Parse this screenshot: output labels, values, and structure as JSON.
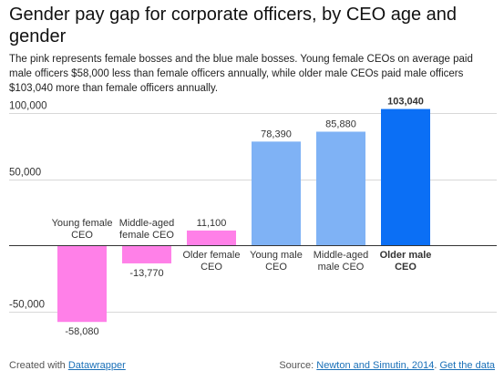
{
  "title": "Gender pay gap for corporate officers, by CEO age and gender",
  "intro": "The pink represents female bosses and the blue male bosses. Young female CEOs on average paid male officers $58,000 less than female officers annually, while older male CEOs paid male officers $103,040 more than female officers annually.",
  "chart_data": {
    "type": "bar",
    "categories": [
      "Young female CEO",
      "Middle-aged female CEO",
      "Older female CEO",
      "Young male CEO",
      "Middle-aged male CEO",
      "Older male CEO"
    ],
    "category_lines": [
      [
        "Young female",
        "CEO"
      ],
      [
        "Middle-aged",
        "female CEO"
      ],
      [
        "Older female",
        "CEO"
      ],
      [
        "Young male",
        "CEO"
      ],
      [
        "Middle-aged",
        "male CEO"
      ],
      [
        "Older male",
        "CEO"
      ]
    ],
    "values": [
      -58080,
      -13770,
      11100,
      78390,
      85880,
      103040
    ],
    "value_labels": [
      "-58,080",
      "-13,770",
      "11,100",
      "78,390",
      "85,880",
      "103,040"
    ],
    "colors": [
      "#ff80e8",
      "#ff80e8",
      "#ff80e8",
      "#7fb2f5",
      "#7fb2f5",
      "#0b6ff5"
    ],
    "highlight": [
      false,
      false,
      false,
      false,
      false,
      true
    ],
    "y_ticks": [
      100000,
      50000,
      -50000
    ],
    "y_tick_labels": [
      "100,000",
      "50,000",
      "-50,000"
    ],
    "ylim": [
      -65000,
      110000
    ],
    "grid": true
  },
  "footer": {
    "created_with": "Created with",
    "tool_link": "Datawrapper",
    "source_prefix": "Source:",
    "source_link": "Newton and Simutin, 2014",
    "separator": ".",
    "data_link": "Get the data"
  }
}
